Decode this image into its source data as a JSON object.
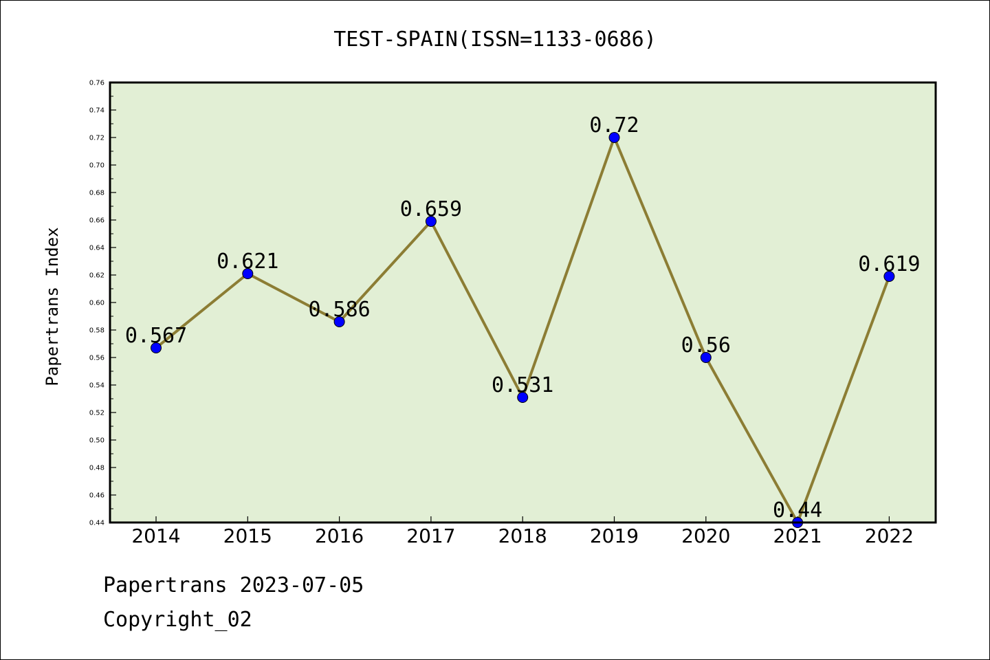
{
  "chart_data": {
    "type": "line",
    "title": "TEST-SPAIN(ISSN=1133-0686)",
    "xlabel": "",
    "ylabel": "Papertrans Index",
    "categories": [
      "2014",
      "2015",
      "2016",
      "2017",
      "2018",
      "2019",
      "2020",
      "2021",
      "2022"
    ],
    "values": [
      0.567,
      0.621,
      0.586,
      0.659,
      0.531,
      0.72,
      0.56,
      0.44,
      0.619
    ],
    "data_labels": [
      "0.567",
      "0.621",
      "0.586",
      "0.659",
      "0.531",
      "0.72",
      "0.56",
      "0.44",
      "0.619"
    ],
    "ylim": [
      0.44,
      0.76
    ],
    "yticks": [
      "0.44",
      "0.46",
      "0.48",
      "0.50",
      "0.52",
      "0.54",
      "0.56",
      "0.58",
      "0.60",
      "0.62",
      "0.64",
      "0.66",
      "0.68",
      "0.70",
      "0.72",
      "0.74",
      "0.76"
    ],
    "grid": false,
    "colors": {
      "plot_background": "#e2efd5",
      "line": "#8c7d34",
      "marker": "#0000ff",
      "frame": "#000000"
    }
  },
  "footer": {
    "date_line": "Papertrans 2023-07-05",
    "copyright_line": "Copyright_02"
  }
}
